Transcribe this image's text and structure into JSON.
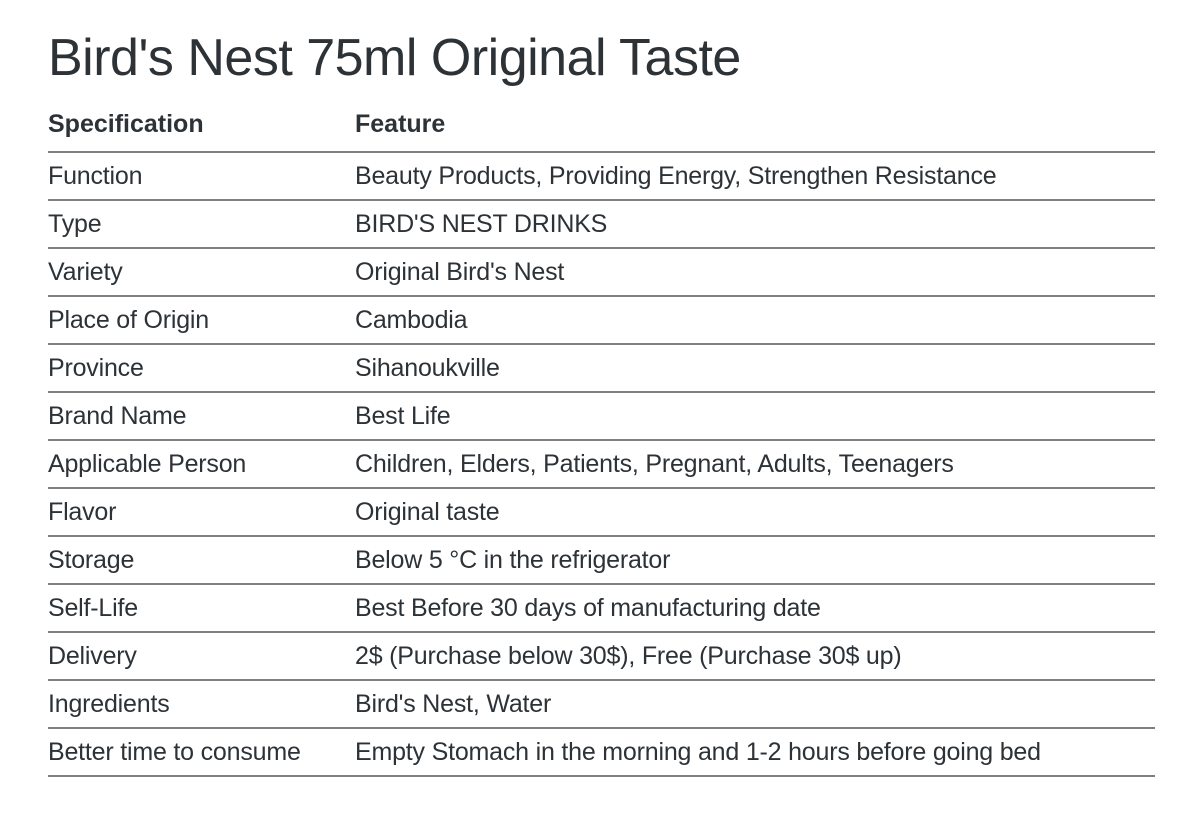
{
  "page": {
    "title": "Bird's Nest 75ml Original Taste"
  },
  "table": {
    "headers": [
      "Specification",
      "Feature"
    ],
    "rows": [
      {
        "spec": "Function",
        "feature": "Beauty Products, Providing Energy, Strengthen Resistance"
      },
      {
        "spec": "Type",
        "feature": "BIRD'S NEST DRINKS"
      },
      {
        "spec": "Variety",
        "feature": "Original Bird's Nest"
      },
      {
        "spec": "Place of Origin",
        "feature": "Cambodia"
      },
      {
        "spec": "Province",
        "feature": "Sihanoukville"
      },
      {
        "spec": "Brand Name",
        "feature": "Best Life"
      },
      {
        "spec": "Applicable Person",
        "feature": "Children, Elders, Patients, Pregnant, Adults, Teenagers"
      },
      {
        "spec": "Flavor",
        "feature": "Original taste"
      },
      {
        "spec": "Storage",
        "feature": "Below 5 °C in the refrigerator"
      },
      {
        "spec": "Self-Life",
        "feature": "Best Before 30 days of manufacturing date"
      },
      {
        "spec": "Delivery",
        "feature": "2$ (Purchase below 30$), Free (Purchase 30$ up)"
      },
      {
        "spec": "Ingredients",
        "feature": "Bird's Nest, Water"
      },
      {
        "spec": "Better time to consume",
        "feature": "Empty Stomach in the morning and 1-2 hours before going bed"
      }
    ]
  },
  "colors": {
    "text": "#2d3237",
    "divider": "#7f7f7f",
    "background": "#ffffff"
  }
}
